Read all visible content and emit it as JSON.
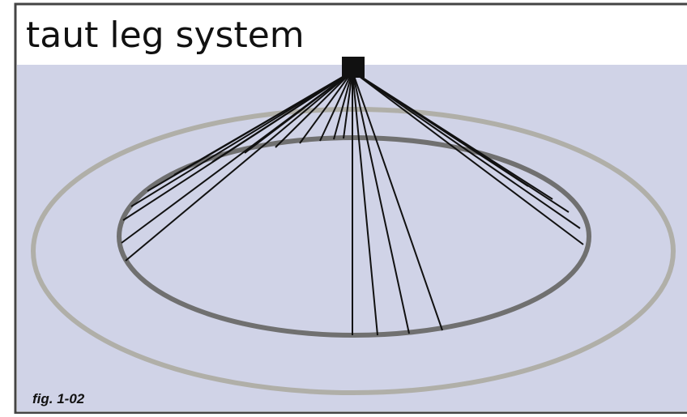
{
  "header": {
    "title": "taut leg system"
  },
  "figure": {
    "caption": "fig. 1-02"
  }
}
